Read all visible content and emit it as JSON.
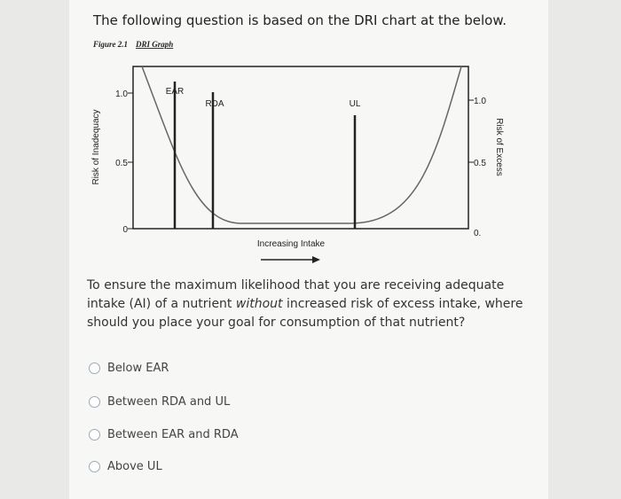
{
  "question": {
    "heading": "The following question is based on the DRI chart at the below.",
    "figure": {
      "caption_number": "Figure 2.1",
      "caption_title": "DRI Graph",
      "left_axis_label": "Risk of Inadequacy",
      "right_axis_label": "Risk of Excess",
      "left_ticks": [
        "1.0",
        "0.5",
        "0"
      ],
      "right_ticks": [
        "1.0",
        "0.5",
        "0."
      ],
      "markers": [
        "EAR",
        "RDA",
        "UL"
      ],
      "x_axis_label": "Increasing Intake"
    },
    "prompt_before": "To ensure the maximum likelihood that you are receiving adequate intake (AI) of a nutrient ",
    "prompt_emphasis": "without",
    "prompt_after": " increased risk of excess intake, where should you place your goal for consumption of that nutrient?",
    "options": [
      "Below EAR",
      "Between RDA and UL",
      "Between EAR and RDA",
      "Above UL"
    ]
  }
}
